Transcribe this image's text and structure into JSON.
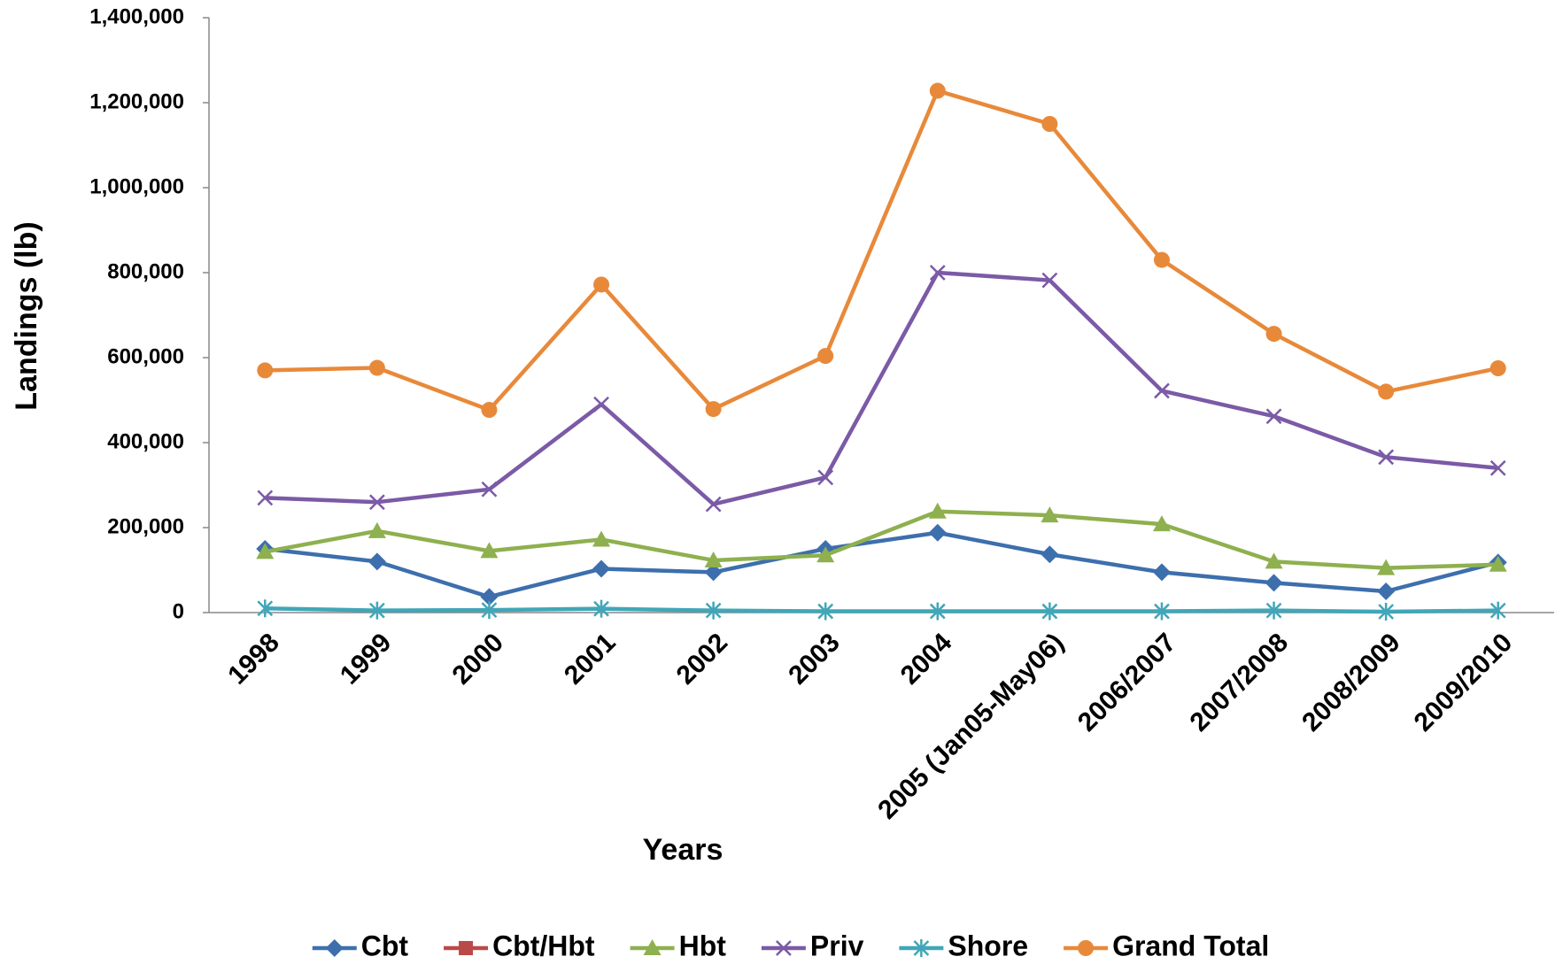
{
  "chart_data": {
    "type": "line",
    "x_label": "Years",
    "y_label": "Landings (lb)",
    "categories": [
      "1998",
      "1999",
      "2000",
      "2001",
      "2002",
      "2003",
      "2004",
      "2005 (Jan05-May06)",
      "2006/2007",
      "2007/2008",
      "2008/2009",
      "2009/2010"
    ],
    "series": [
      {
        "name": "Cbt",
        "color": "#3d6fad",
        "marker": "diamond",
        "values": [
          150000,
          120000,
          37000,
          103000,
          95000,
          150000,
          188000,
          137000,
          95000,
          70000,
          50000,
          118000
        ]
      },
      {
        "name": "Cbt/Hbt",
        "color": "#b94a48",
        "marker": "square",
        "values": [
          null,
          null,
          null,
          null,
          null,
          null,
          null,
          null,
          null,
          null,
          null,
          null
        ]
      },
      {
        "name": "Hbt",
        "color": "#8eb04f",
        "marker": "triangle",
        "values": [
          143000,
          192000,
          145000,
          172000,
          123000,
          135000,
          238000,
          229000,
          208000,
          120000,
          105000,
          113000
        ]
      },
      {
        "name": "Priv",
        "color": "#7b5aa6",
        "marker": "x",
        "values": [
          270000,
          260000,
          290000,
          490000,
          255000,
          318000,
          800000,
          782000,
          522000,
          462000,
          366000,
          340000
        ]
      },
      {
        "name": "Shore",
        "color": "#41a6b8",
        "marker": "asterisk",
        "values": [
          10000,
          5000,
          6000,
          9000,
          5000,
          3000,
          3000,
          3000,
          3000,
          5000,
          2000,
          5000
        ]
      },
      {
        "name": "Grand Total",
        "color": "#e8893a",
        "marker": "circle",
        "values": [
          570000,
          576000,
          477000,
          772000,
          479000,
          604000,
          1228000,
          1150000,
          830000,
          656000,
          520000,
          575000
        ]
      }
    ],
    "ylim": [
      0,
      1400000
    ],
    "yticks": [
      0,
      {
        "value": 200000,
        "label": "200,000"
      },
      {
        "value": 400000,
        "label": "400,000"
      },
      {
        "value": 600000,
        "label": "600,000"
      },
      {
        "value": 800000,
        "label": "800,000"
      },
      {
        "value": 1000000,
        "label": "1,000,000"
      },
      {
        "value": 1200000,
        "label": "1,200,000"
      },
      {
        "value": 1400000,
        "label": "1,400,000"
      }
    ],
    "grid": false,
    "legend": "bottom"
  }
}
